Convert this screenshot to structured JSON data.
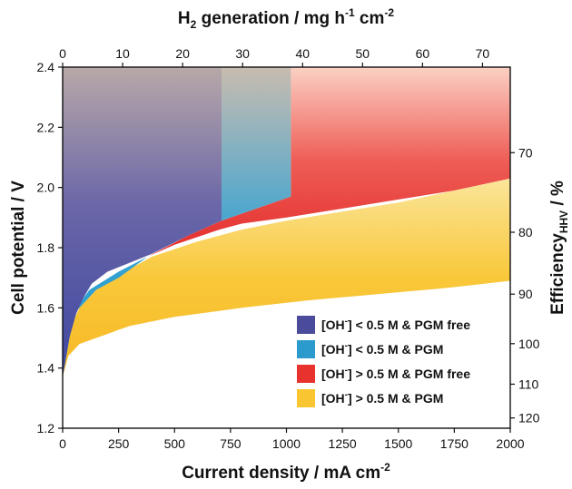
{
  "chart_data": {
    "type": "area",
    "xlabel": "Current density / mA cm",
    "xlabel_sup": "-2",
    "ylabel": "Cell potential / V",
    "top_label_prefix": "H",
    "top_label_sub": "2",
    "top_label_main": " generation / mg h",
    "top_label_sup1": "-1",
    "top_label_mid": " cm",
    "top_label_sup2": "-2",
    "right_label_prefix": "Efficiency",
    "right_label_sub": "HHV",
    "right_label_suffix": " / %",
    "xlim": [
      0,
      2000
    ],
    "ylim": [
      1.2,
      2.4
    ],
    "x_ticks": [
      0,
      250,
      500,
      750,
      1000,
      1250,
      1500,
      1750,
      2000
    ],
    "y_ticks": [
      1.2,
      1.4,
      1.6,
      1.8,
      2.0,
      2.2,
      2.4
    ],
    "top_ticks": [
      0,
      10,
      20,
      30,
      40,
      50,
      60,
      70
    ],
    "top_ticks_ma_per_unit": 26.8,
    "right_ticks": [
      70,
      80,
      90,
      100,
      110,
      120
    ],
    "right_tick_v_per_unit": 148.1,
    "series": [
      {
        "name": "[OH-] > 0.5 M & PGM",
        "color": "#f9c631",
        "upper": [
          [
            0,
            1.37
          ],
          [
            25,
            1.52
          ],
          [
            75,
            1.6
          ],
          [
            150,
            1.66
          ],
          [
            250,
            1.71
          ],
          [
            400,
            1.77
          ],
          [
            600,
            1.82
          ],
          [
            800,
            1.86
          ],
          [
            1000,
            1.89
          ],
          [
            1250,
            1.92
          ],
          [
            1500,
            1.95
          ],
          [
            1750,
            1.99
          ],
          [
            2000,
            2.03
          ]
        ],
        "lower": [
          [
            0,
            1.37
          ],
          [
            25,
            1.44
          ],
          [
            75,
            1.48
          ],
          [
            150,
            1.5
          ],
          [
            300,
            1.54
          ],
          [
            500,
            1.57
          ],
          [
            800,
            1.6
          ],
          [
            1100,
            1.625
          ],
          [
            1400,
            1.645
          ],
          [
            1700,
            1.665
          ],
          [
            2000,
            1.69
          ]
        ]
      },
      {
        "name": "[OH-] > 0.5 M & PGM free",
        "color": "#e8322e",
        "upper": [
          [
            400,
            2.4
          ],
          [
            2000,
            2.4
          ]
        ],
        "lower_top_part": [
          [
            2000,
            2.03
          ],
          [
            2000,
            1.78
          ]
        ],
        "full_polygon": [
          [
            380,
            1.77
          ],
          [
            500,
            1.81
          ],
          [
            700,
            1.86
          ],
          [
            800,
            1.88
          ],
          [
            1000,
            1.9
          ],
          [
            1250,
            1.93
          ],
          [
            1500,
            1.96
          ],
          [
            1750,
            1.99
          ],
          [
            2000,
            2.03
          ],
          [
            2000,
            2.4
          ],
          [
            1020,
            2.4
          ],
          [
            1020,
            1.97
          ],
          [
            710,
            1.89
          ],
          [
            560,
            1.84
          ]
        ]
      },
      {
        "name": "[OH-] < 0.5 M & PGM",
        "color": "#2a9bcc",
        "polygon": [
          [
            0,
            1.37
          ],
          [
            15,
            1.45
          ],
          [
            60,
            1.6
          ],
          [
            120,
            1.66
          ],
          [
            250,
            1.72
          ],
          [
            380,
            1.77
          ],
          [
            560,
            1.84
          ],
          [
            710,
            1.89
          ],
          [
            1020,
            1.97
          ],
          [
            1020,
            2.4
          ],
          [
            710,
            2.4
          ],
          [
            710,
            1.89
          ],
          [
            560,
            1.84
          ],
          [
            380,
            1.77
          ],
          [
            250,
            1.7
          ],
          [
            150,
            1.66
          ],
          [
            50,
            1.58
          ]
        ]
      },
      {
        "name": "[OH-] < 0.5 M & PGM free",
        "color": "#4a4b9a",
        "polygon": [
          [
            0,
            1.37
          ],
          [
            0,
            2.4
          ],
          [
            710,
            2.4
          ],
          [
            710,
            1.89
          ],
          [
            560,
            1.84
          ],
          [
            400,
            1.78
          ],
          [
            300,
            1.75
          ],
          [
            200,
            1.72
          ],
          [
            130,
            1.68
          ],
          [
            90,
            1.63
          ],
          [
            60,
            1.58
          ],
          [
            30,
            1.5
          ]
        ]
      }
    ],
    "legend": [
      {
        "label": "[OH",
        "sup": "-",
        "tail": "] < 0.5 M & PGM free",
        "color": "#4a4b9a"
      },
      {
        "label": "[OH",
        "sup": "-",
        "tail": "] < 0.5 M & PGM",
        "color": "#2a9bcc"
      },
      {
        "label": "[OH",
        "sup": "-",
        "tail": "] > 0.5 M & PGM free",
        "color": "#e8322e"
      },
      {
        "label": "[OH",
        "sup": "-",
        "tail": "] > 0.5 M & PGM",
        "color": "#f9c631"
      }
    ],
    "legend_position": "lower-right",
    "grid": false
  }
}
